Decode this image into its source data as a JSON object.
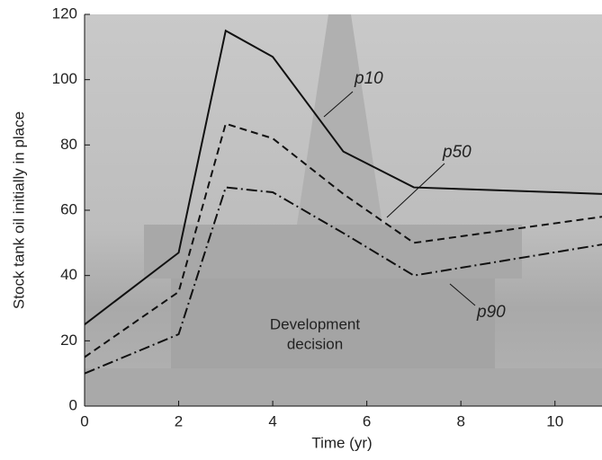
{
  "chart_data": {
    "type": "line",
    "x_label": "Time (yr)",
    "y_label": "Stock tank oil initially in place",
    "x": [
      0,
      2,
      3,
      4,
      5.5,
      7,
      11
    ],
    "series": [
      {
        "name": "p10",
        "color": "#111111",
        "dash": "solid",
        "values": [
          25,
          47,
          115,
          107,
          78,
          67,
          65
        ]
      },
      {
        "name": "p50",
        "color": "#111111",
        "dash": "dashed",
        "values": [
          15,
          35,
          86.5,
          82,
          65,
          50,
          58
        ]
      },
      {
        "name": "p90",
        "color": "#111111",
        "dash": "dashdot",
        "values": [
          10,
          22,
          67,
          65.5,
          53,
          40,
          49.5
        ]
      }
    ],
    "annotation": [
      "Development",
      "decision"
    ],
    "xlim": [
      0,
      11
    ],
    "ylim": [
      0,
      120
    ],
    "xticks": [
      0,
      2,
      4,
      6,
      8,
      10
    ],
    "yticks": [
      0,
      20,
      40,
      60,
      80,
      100,
      120
    ]
  }
}
